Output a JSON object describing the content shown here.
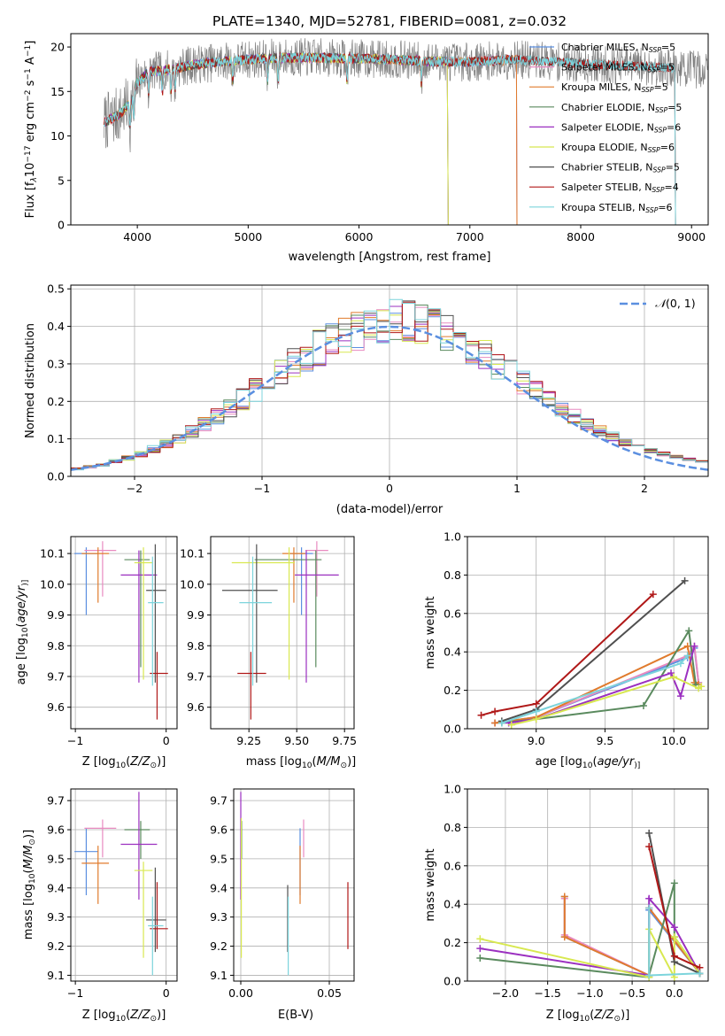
{
  "title": "PLATE=1340, MJD=52781, FIBERID=0081, z=0.032",
  "colors": {
    "Chabrier MILES": "#5b8fe0",
    "Salpeter MILES": "#e88ac0",
    "Kroupa MILES": "#e07b2d",
    "Chabrier ELODIE": "#5a8a5e",
    "Salpeter ELODIE": "#9b30c0",
    "Kroupa ELODIE": "#d8e850",
    "Chabrier STELIB": "#505050",
    "Salpeter STELIB": "#b01818",
    "Kroupa STELIB": "#7cd4dc",
    "gaussian": "#5b8fe0",
    "grid": "#b0b0b0"
  },
  "chart_data": [
    {
      "id": "spectrum",
      "type": "line",
      "title": "PLATE=1340, MJD=52781, FIBERID=0081, z=0.032",
      "xlabel": "wavelength [Angstrom, rest frame]",
      "ylabel_parts": [
        "Flux [f",
        "λ",
        "10",
        "−17",
        " erg cm",
        "−2",
        " s",
        "−1",
        " A",
        "−1",
        "]"
      ],
      "xlim": [
        3400,
        9150
      ],
      "ylim": [
        0,
        21.5
      ],
      "xticks": [
        "4000",
        "5000",
        "6000",
        "7000",
        "8000",
        "9000"
      ],
      "yticks": [
        "0",
        "5",
        "10",
        "15",
        "20"
      ],
      "grid": false,
      "legend_position": "top-right",
      "legend": [
        {
          "model": "Chabrier MILES",
          "nssp": "5"
        },
        {
          "model": "Salpeter MILES",
          "nssp": "5"
        },
        {
          "model": "Kroupa MILES",
          "nssp": "5"
        },
        {
          "model": "Chabrier ELODIE",
          "nssp": "5"
        },
        {
          "model": "Salpeter ELODIE",
          "nssp": "6"
        },
        {
          "model": "Kroupa ELODIE",
          "nssp": "6"
        },
        {
          "model": "Chabrier STELIB",
          "nssp": "5"
        },
        {
          "model": "Salpeter STELIB",
          "nssp": "4"
        },
        {
          "model": "Kroupa STELIB",
          "nssp": "6"
        }
      ],
      "continuum": {
        "x": [
          3700,
          3850,
          3950,
          4000,
          4100,
          4300,
          4500,
          4800,
          5000,
          5300,
          5600,
          6000,
          6300,
          6600,
          7000,
          7400,
          7800,
          8200,
          8600,
          9000
        ],
        "y": [
          11.5,
          12.5,
          14.0,
          16.0,
          17.2,
          17.5,
          18.0,
          18.4,
          18.6,
          18.8,
          18.8,
          18.7,
          18.6,
          18.4,
          18.3,
          18.6,
          18.3,
          18.0,
          17.8,
          17.5
        ]
      },
      "model_ranges": {
        "MILES": [
          3700,
          7420
        ],
        "ELODIE": [
          3700,
          6800
        ],
        "STELIB": [
          3700,
          8850
        ]
      },
      "noise_amplitude": 2.2,
      "data_range": [
        3700,
        9150
      ]
    },
    {
      "id": "residuals",
      "type": "line",
      "xlabel": "(data-model)/error",
      "ylabel": "Normed distribution",
      "xlim": [
        -2.5,
        2.5
      ],
      "ylim": [
        0,
        0.51
      ],
      "xticks": [
        "−2",
        "−1",
        "0",
        "1",
        "2"
      ],
      "yticks": [
        "0.0",
        "0.1",
        "0.2",
        "0.3",
        "0.4",
        "0.5"
      ],
      "grid": true,
      "legend_position": "top-right",
      "legend_label_parts": [
        "𝒩",
        "(0, 1)"
      ],
      "gaussian": {
        "mu": 0,
        "sigma": 1
      },
      "histogram_bin_width": 0.1
    },
    {
      "id": "age_vs_Z",
      "type": "scatter",
      "xlabel_parts": [
        "Z [log",
        "10",
        "(",
        "Z/Z",
        "⊙",
        ")]"
      ],
      "ylabel_parts": [
        "age  [log",
        "10",
        "(",
        "age/yr",
        ")]"
      ],
      "xlim": [
        -1.05,
        0.12
      ],
      "ylim": [
        9.53,
        10.155
      ],
      "xticks": [
        "−1",
        "0"
      ],
      "yticks": [
        "9.6",
        "9.7",
        "9.8",
        "9.9",
        "10.0",
        "10.1"
      ],
      "grid": true,
      "points": [
        {
          "model": "Chabrier MILES",
          "x": -0.88,
          "xerr": [
            0.13,
            0.13
          ],
          "y": 10.1,
          "yerr": [
            0.2,
            0.02
          ]
        },
        {
          "model": "Salpeter MILES",
          "x": -0.7,
          "xerr": [
            0.2,
            0.15
          ],
          "y": 10.11,
          "yerr": [
            0.15,
            0.03
          ]
        },
        {
          "model": "Kroupa MILES",
          "x": -0.75,
          "xerr": [
            0.18,
            0.12
          ],
          "y": 10.1,
          "yerr": [
            0.16,
            0.02
          ]
        },
        {
          "model": "Chabrier ELODIE",
          "x": -0.28,
          "xerr": [
            0.18,
            0.1
          ],
          "y": 10.08,
          "yerr": [
            0.35,
            0.03
          ]
        },
        {
          "model": "Salpeter ELODIE",
          "x": -0.3,
          "xerr": [
            0.2,
            0.2
          ],
          "y": 10.03,
          "yerr": [
            0.35,
            0.08
          ]
        },
        {
          "model": "Kroupa ELODIE",
          "x": -0.25,
          "xerr": [
            0.1,
            0.1
          ],
          "y": 10.07,
          "yerr": [
            0.38,
            0.05
          ]
        },
        {
          "model": "Chabrier STELIB",
          "x": -0.12,
          "xerr": [
            0.1,
            0.12
          ],
          "y": 9.98,
          "yerr": [
            0.3,
            0.15
          ]
        },
        {
          "model": "Salpeter STELIB",
          "x": -0.1,
          "xerr": [
            0.08,
            0.12
          ],
          "y": 9.71,
          "yerr": [
            0.15,
            0.07
          ]
        },
        {
          "model": "Kroupa STELIB",
          "x": -0.15,
          "xerr": [
            0.05,
            0.12
          ],
          "y": 9.94,
          "yerr": [
            0.27,
            0.15
          ]
        }
      ]
    },
    {
      "id": "age_vs_mass",
      "type": "scatter",
      "xlabel_parts": [
        "mass [log",
        "10",
        "(",
        "M/M",
        "⊙",
        ")]"
      ],
      "xlim": [
        9.05,
        9.8
      ],
      "ylim": [
        9.53,
        10.155
      ],
      "xticks": [
        "9.25",
        "9.50",
        "9.75"
      ],
      "yticks": [
        "9.6",
        "9.7",
        "9.8",
        "9.9",
        "10.0",
        "10.1"
      ],
      "grid": true,
      "points": [
        {
          "model": "Chabrier MILES",
          "x": 9.525,
          "xerr": [
            0.06,
            0.06
          ],
          "y": 10.1,
          "yerr": [
            0.2,
            0.02
          ]
        },
        {
          "model": "Salpeter MILES",
          "x": 9.605,
          "xerr": [
            0.06,
            0.06
          ],
          "y": 10.11,
          "yerr": [
            0.15,
            0.03
          ]
        },
        {
          "model": "Kroupa MILES",
          "x": 9.485,
          "xerr": [
            0.06,
            0.06
          ],
          "y": 10.1,
          "yerr": [
            0.16,
            0.02
          ]
        },
        {
          "model": "Chabrier ELODIE",
          "x": 9.6,
          "xerr": [
            0.32,
            0.03
          ],
          "y": 10.08,
          "yerr": [
            0.35,
            0.03
          ]
        },
        {
          "model": "Salpeter ELODIE",
          "x": 9.55,
          "xerr": [
            0.06,
            0.17
          ],
          "y": 10.03,
          "yerr": [
            0.35,
            0.08
          ]
        },
        {
          "model": "Kroupa ELODIE",
          "x": 9.46,
          "xerr": [
            0.3,
            0.03
          ],
          "y": 10.07,
          "yerr": [
            0.38,
            0.05
          ]
        },
        {
          "model": "Chabrier STELIB",
          "x": 9.29,
          "xerr": [
            0.18,
            0.11
          ],
          "y": 9.98,
          "yerr": [
            0.3,
            0.15
          ]
        },
        {
          "model": "Salpeter STELIB",
          "x": 9.26,
          "xerr": [
            0.07,
            0.08
          ],
          "y": 9.71,
          "yerr": [
            0.15,
            0.07
          ]
        },
        {
          "model": "Kroupa STELIB",
          "x": 9.27,
          "xerr": [
            0.07,
            0.1
          ],
          "y": 9.94,
          "yerr": [
            0.27,
            0.15
          ]
        }
      ]
    },
    {
      "id": "weight_vs_age",
      "type": "line",
      "xlabel_parts": [
        "age  [log",
        "10",
        "(",
        "age/yr",
        ")]"
      ],
      "ylabel": "mass weight",
      "xlim": [
        8.5,
        10.25
      ],
      "ylim": [
        0,
        1.0
      ],
      "xticks": [
        "9.0",
        "9.5",
        "10.0"
      ],
      "yticks": [
        "0.0",
        "0.2",
        "0.4",
        "0.6",
        "0.8",
        "1.0"
      ],
      "grid": true,
      "series": [
        {
          "model": "Chabrier MILES",
          "x": [
            8.7,
            9.0,
            10.1,
            10.15,
            10.18
          ],
          "y": [
            0.03,
            0.06,
            0.37,
            0.42,
            0.24
          ]
        },
        {
          "model": "Salpeter MILES",
          "x": [
            8.7,
            9.0,
            10.1,
            10.15,
            10.18
          ],
          "y": [
            0.03,
            0.06,
            0.38,
            0.43,
            0.24
          ]
        },
        {
          "model": "Kroupa MILES",
          "x": [
            8.7,
            9.0,
            10.1,
            10.15,
            10.18
          ],
          "y": [
            0.03,
            0.06,
            0.43,
            0.24,
            0.23
          ]
        },
        {
          "model": "Chabrier ELODIE",
          "x": [
            8.75,
            9.0,
            9.78,
            10.11,
            10.16
          ],
          "y": [
            0.03,
            0.05,
            0.12,
            0.51,
            0.23
          ]
        },
        {
          "model": "Salpeter ELODIE",
          "x": [
            8.8,
            9.0,
            9.98,
            10.05,
            10.15
          ],
          "y": [
            0.03,
            0.05,
            0.29,
            0.17,
            0.43
          ]
        },
        {
          "model": "Kroupa ELODIE",
          "x": [
            8.82,
            9.0,
            10.0,
            10.18,
            10.2
          ],
          "y": [
            0.02,
            0.05,
            0.27,
            0.21,
            0.22
          ]
        },
        {
          "model": "Chabrier STELIB",
          "x": [
            8.75,
            9.0,
            10.08
          ],
          "y": [
            0.04,
            0.1,
            0.77
          ]
        },
        {
          "model": "Salpeter STELIB",
          "x": [
            8.6,
            8.7,
            9.0,
            9.85
          ],
          "y": [
            0.07,
            0.09,
            0.13,
            0.7
          ]
        },
        {
          "model": "Kroupa STELIB",
          "x": [
            8.75,
            9.0,
            10.05,
            10.1
          ],
          "y": [
            0.03,
            0.09,
            0.34,
            0.38
          ]
        }
      ]
    },
    {
      "id": "mass_vs_Z",
      "type": "scatter",
      "xlabel_parts": [
        "Z [log",
        "10",
        "(",
        "Z/Z",
        "⊙",
        ")]"
      ],
      "ylabel_parts": [
        "mass [log",
        "10",
        "(",
        "M/M",
        "⊙",
        ")]"
      ],
      "xlim": [
        -1.05,
        0.12
      ],
      "ylim": [
        9.08,
        9.74
      ],
      "xticks": [
        "−1",
        "0"
      ],
      "yticks": [
        "9.1",
        "9.2",
        "9.3",
        "9.4",
        "9.5",
        "9.6",
        "9.7"
      ],
      "grid": true,
      "points": [
        {
          "model": "Chabrier MILES",
          "x": -0.88,
          "xerr": [
            0.13,
            0.13
          ],
          "y": 9.525,
          "yerr": [
            0.15,
            0.08
          ]
        },
        {
          "model": "Salpeter MILES",
          "x": -0.7,
          "xerr": [
            0.2,
            0.15
          ],
          "y": 9.605,
          "yerr": [
            0.1,
            0.03
          ]
        },
        {
          "model": "Kroupa MILES",
          "x": -0.75,
          "xerr": [
            0.18,
            0.12
          ],
          "y": 9.485,
          "yerr": [
            0.14,
            0.06
          ]
        },
        {
          "model": "Chabrier ELODIE",
          "x": -0.28,
          "xerr": [
            0.18,
            0.1
          ],
          "y": 9.6,
          "yerr": [
            0.1,
            0.03
          ]
        },
        {
          "model": "Salpeter ELODIE",
          "x": -0.3,
          "xerr": [
            0.2,
            0.2
          ],
          "y": 9.55,
          "yerr": [
            0.19,
            0.18
          ]
        },
        {
          "model": "Kroupa ELODIE",
          "x": -0.25,
          "xerr": [
            0.1,
            0.1
          ],
          "y": 9.46,
          "yerr": [
            0.3,
            0.03
          ]
        },
        {
          "model": "Chabrier STELIB",
          "x": -0.12,
          "xerr": [
            0.1,
            0.12
          ],
          "y": 9.29,
          "yerr": [
            0.11,
            0.18
          ]
        },
        {
          "model": "Salpeter STELIB",
          "x": -0.1,
          "xerr": [
            0.08,
            0.12
          ],
          "y": 9.26,
          "yerr": [
            0.07,
            0.16
          ]
        },
        {
          "model": "Kroupa STELIB",
          "x": -0.15,
          "xerr": [
            0.05,
            0.12
          ],
          "y": 9.27,
          "yerr": [
            0.17,
            0.1
          ]
        }
      ]
    },
    {
      "id": "mass_vs_ebv",
      "type": "scatter",
      "xlabel": "E(B-V)",
      "xlim": [
        -0.004,
        0.064
      ],
      "ylim": [
        9.08,
        9.74
      ],
      "xticks": [
        "0.00",
        "0.05"
      ],
      "yticks": [
        "9.1",
        "9.2",
        "9.3",
        "9.4",
        "9.5",
        "9.6",
        "9.7"
      ],
      "grid": true,
      "points": [
        {
          "model": "Chabrier MILES",
          "x": 0.0335,
          "y": 9.525,
          "yerr": [
            0.15,
            0.08
          ]
        },
        {
          "model": "Salpeter MILES",
          "x": 0.0355,
          "y": 9.605,
          "yerr": [
            0.1,
            0.03
          ]
        },
        {
          "model": "Kroupa MILES",
          "x": 0.0335,
          "y": 9.485,
          "yerr": [
            0.14,
            0.06
          ]
        },
        {
          "model": "Chabrier ELODIE",
          "x": 0.0005,
          "y": 9.6,
          "yerr": [
            0.1,
            0.03
          ]
        },
        {
          "model": "Salpeter ELODIE",
          "x": 0.0,
          "y": 9.55,
          "yerr": [
            0.19,
            0.18
          ]
        },
        {
          "model": "Kroupa ELODIE",
          "x": 0.0003,
          "y": 9.46,
          "yerr": [
            0.3,
            0.18
          ]
        },
        {
          "model": "Chabrier STELIB",
          "x": 0.0265,
          "y": 9.29,
          "yerr": [
            0.11,
            0.12
          ]
        },
        {
          "model": "Salpeter STELIB",
          "x": 0.0605,
          "y": 9.26,
          "yerr": [
            0.07,
            0.16
          ]
        },
        {
          "model": "Kroupa STELIB",
          "x": 0.0268,
          "y": 9.27,
          "yerr": [
            0.17,
            0.1
          ]
        }
      ]
    },
    {
      "id": "weight_vs_Z",
      "type": "line",
      "xlabel_parts": [
        "Z [log",
        "10",
        "(",
        "Z/Z",
        "⊙",
        ")]"
      ],
      "ylabel": "mass weight",
      "xlim": [
        -2.45,
        0.4
      ],
      "ylim": [
        0,
        1.0
      ],
      "xticks": [
        "−2.0",
        "−1.5",
        "−1.0",
        "−0.5",
        "0.0"
      ],
      "yticks": [
        "0.0",
        "0.2",
        "0.4",
        "0.6",
        "0.8",
        "1.0"
      ],
      "grid": true,
      "series": [
        {
          "model": "Chabrier MILES",
          "x": [
            -1.3,
            -1.3,
            -0.3,
            -0.3,
            0.3
          ],
          "y": [
            0.44,
            0.23,
            0.03,
            0.37,
            0.04
          ]
        },
        {
          "model": "Salpeter MILES",
          "x": [
            -1.3,
            -1.3,
            -0.3,
            -0.3,
            0.3
          ],
          "y": [
            0.43,
            0.24,
            0.03,
            0.38,
            0.04
          ]
        },
        {
          "model": "Kroupa MILES",
          "x": [
            -1.3,
            -1.3,
            -0.3,
            -0.3,
            0.3
          ],
          "y": [
            0.44,
            0.23,
            0.03,
            0.38,
            0.04
          ]
        },
        {
          "model": "Chabrier ELODIE",
          "x": [
            -2.3,
            -0.3,
            -0.3,
            0.0,
            0.0,
            0.3
          ],
          "y": [
            0.12,
            0.02,
            0.03,
            0.51,
            0.23,
            0.04
          ]
        },
        {
          "model": "Salpeter ELODIE",
          "x": [
            -2.3,
            -0.3,
            -0.3,
            0.0,
            0.3
          ],
          "y": [
            0.17,
            0.03,
            0.43,
            0.28,
            0.04
          ]
        },
        {
          "model": "Kroupa ELODIE",
          "x": [
            -2.3,
            -0.3,
            -0.3,
            0.0,
            0.0,
            0.3
          ],
          "y": [
            0.22,
            0.02,
            0.27,
            0.02,
            0.23,
            0.04
          ]
        },
        {
          "model": "Chabrier STELIB",
          "x": [
            -0.3,
            0.0,
            0.3
          ],
          "y": [
            0.77,
            0.1,
            0.04
          ]
        },
        {
          "model": "Salpeter STELIB",
          "x": [
            -0.3,
            0.0,
            0.3
          ],
          "y": [
            0.7,
            0.13,
            0.07
          ]
        },
        {
          "model": "Kroupa STELIB",
          "x": [
            -0.3,
            -0.3,
            0.3
          ],
          "y": [
            0.38,
            0.03,
            0.04
          ]
        }
      ]
    }
  ]
}
